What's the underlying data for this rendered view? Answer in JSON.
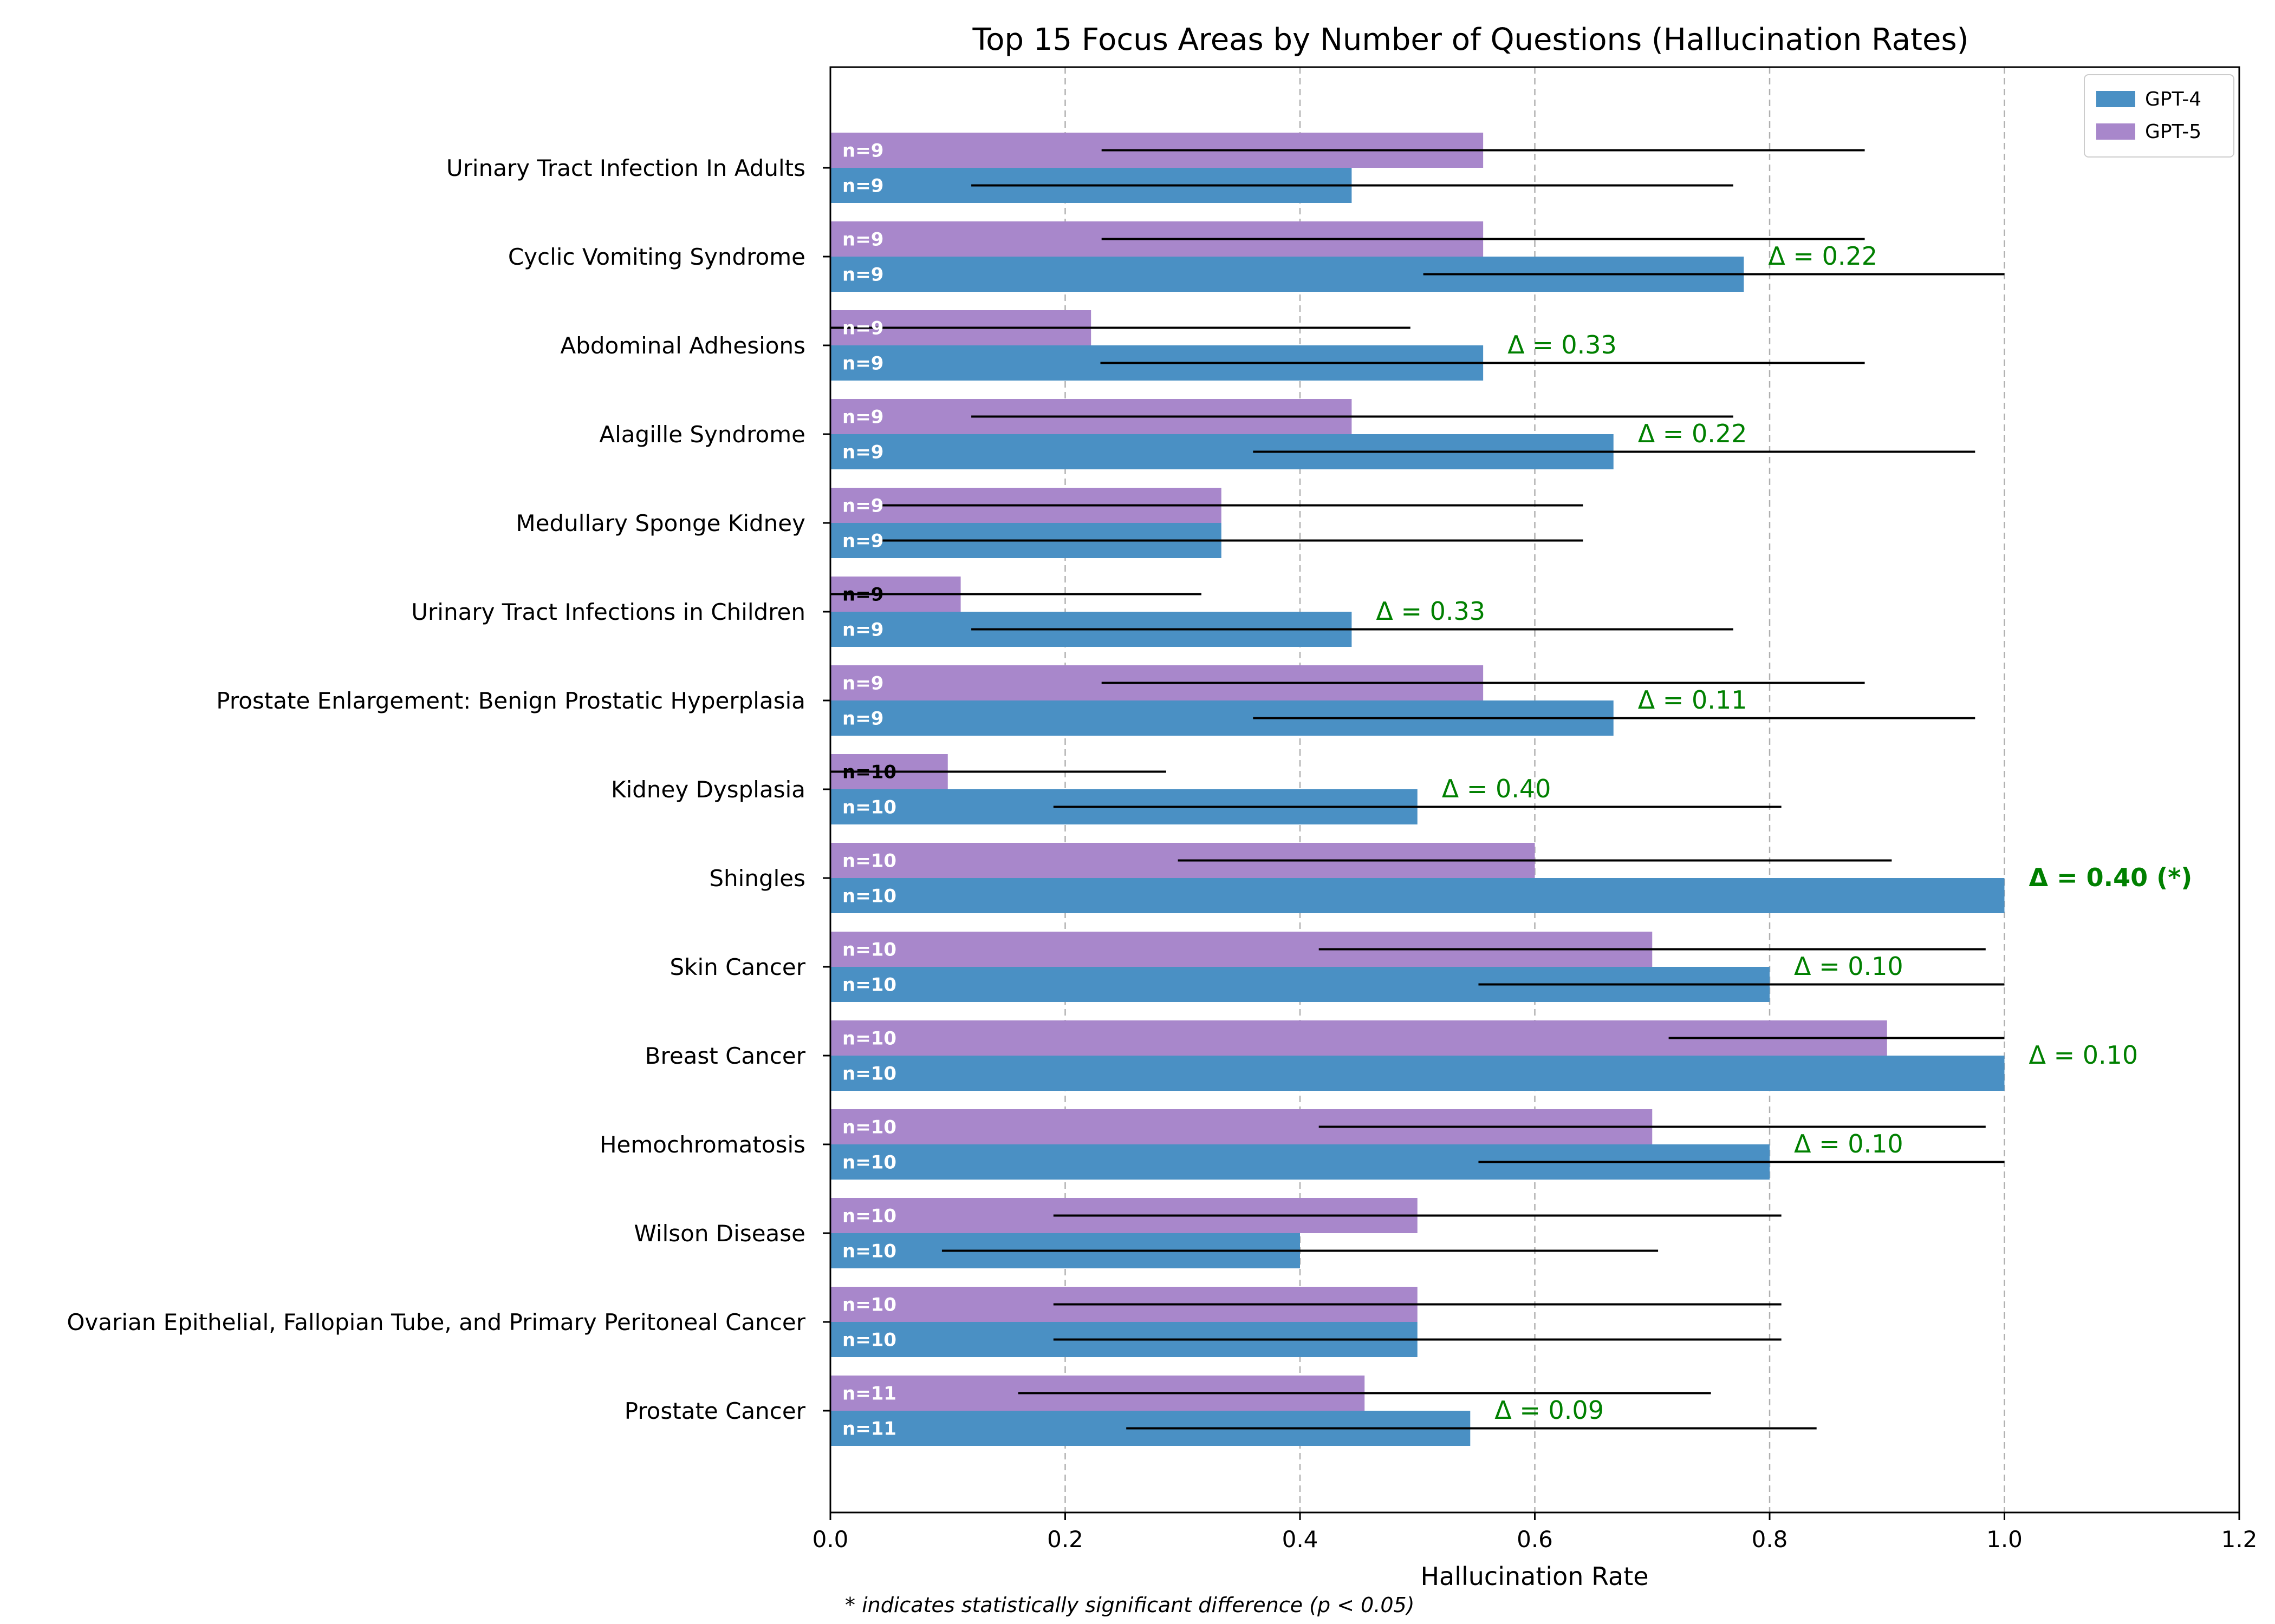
{
  "chart_data": {
    "type": "bar",
    "orientation": "horizontal",
    "title": "Top 15 Focus Areas by Number of Questions (Hallucination Rates)",
    "xlabel": "Hallucination Rate",
    "ylabel": "",
    "xlim": [
      0,
      1.2
    ],
    "xticks": [
      "0.0",
      "0.2",
      "0.4",
      "0.6",
      "0.8",
      "1.0",
      "1.2"
    ],
    "grid": "x-dashed",
    "legend_position": "top-right",
    "footnote": "* indicates statistically significant difference (p < 0.05)",
    "categories": [
      "Urinary Tract Infection In Adults",
      "Cyclic Vomiting Syndrome",
      "Abdominal Adhesions",
      "Alagille Syndrome",
      "Medullary Sponge Kidney",
      "Urinary Tract Infections in Children",
      "Prostate Enlargement: Benign Prostatic Hyperplasia",
      "Kidney Dysplasia",
      "Shingles",
      "Skin Cancer",
      "Breast Cancer",
      "Hemochromatosis",
      "Wilson Disease",
      "Ovarian Epithelial, Fallopian Tube, and Primary Peritoneal Cancer",
      "Prostate Cancer"
    ],
    "series": [
      {
        "name": "GPT-4",
        "color": "#4a90c4",
        "values": [
          0.444,
          0.778,
          0.556,
          0.667,
          0.333,
          0.444,
          0.667,
          0.5,
          1.0,
          0.8,
          1.0,
          0.8,
          0.4,
          0.5,
          0.545
        ],
        "ci_low": [
          0.12,
          0.505,
          0.23,
          0.36,
          0.042,
          0.12,
          0.36,
          0.19,
          1.0,
          0.552,
          1.0,
          0.552,
          0.095,
          0.19,
          0.252
        ],
        "ci_high": [
          0.769,
          1.0,
          0.881,
          0.975,
          0.641,
          0.769,
          0.975,
          0.81,
          1.0,
          1.0,
          1.0,
          1.0,
          0.705,
          0.81,
          0.84
        ],
        "n_labels": [
          "n=9",
          "n=9",
          "n=9",
          "n=9",
          "n=9",
          "n=9",
          "n=9",
          "n=10",
          "n=10",
          "n=10",
          "n=10",
          "n=10",
          "n=10",
          "n=10",
          "n=11"
        ]
      },
      {
        "name": "GPT-5",
        "color": "#a887cb",
        "values": [
          0.556,
          0.556,
          0.222,
          0.444,
          0.333,
          0.111,
          0.556,
          0.1,
          0.6,
          0.7,
          0.9,
          0.7,
          0.5,
          0.5,
          0.455
        ],
        "ci_low": [
          0.231,
          0.231,
          0.0,
          0.12,
          0.042,
          0.0,
          0.231,
          0.0,
          0.296,
          0.416,
          0.714,
          0.416,
          0.19,
          0.19,
          0.16
        ],
        "ci_high": [
          0.881,
          0.881,
          0.494,
          0.769,
          0.641,
          0.316,
          0.881,
          0.286,
          0.904,
          0.984,
          1.0,
          0.984,
          0.81,
          0.81,
          0.75
        ],
        "n_labels": [
          "n=9",
          "n=9",
          "n=9",
          "n=9",
          "n=9",
          "n=9",
          "n=9",
          "n=10",
          "n=10",
          "n=10",
          "n=10",
          "n=10",
          "n=10",
          "n=10",
          "n=11"
        ]
      }
    ],
    "deltas": [
      "",
      "Δ = 0.22",
      "Δ = 0.33",
      "Δ = 0.22",
      "",
      "Δ = 0.33",
      "Δ = 0.11",
      "Δ = 0.40",
      "Δ = 0.40 (*)",
      "Δ = 0.10",
      "Δ = 0.10",
      "Δ = 0.10",
      "",
      "",
      "Δ = 0.09"
    ],
    "significant": [
      false,
      false,
      false,
      false,
      false,
      false,
      false,
      false,
      true,
      false,
      false,
      false,
      false,
      false,
      false
    ]
  }
}
